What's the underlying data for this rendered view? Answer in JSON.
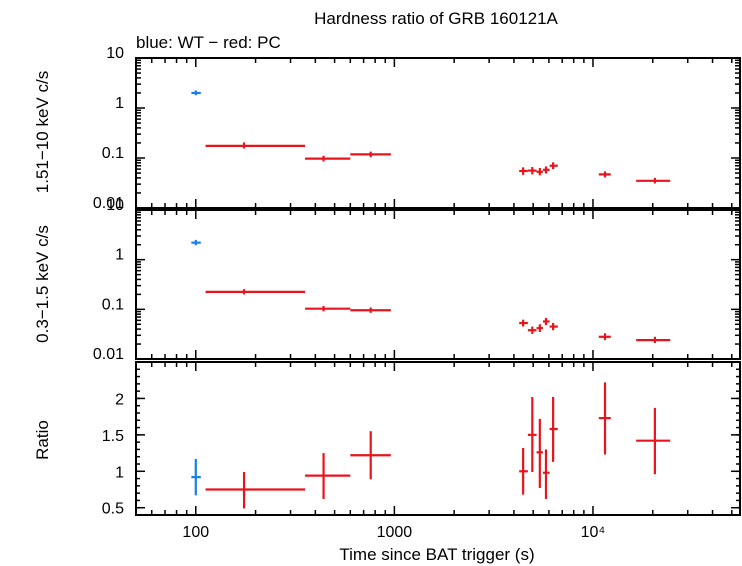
{
  "chart_data": {
    "type": "scatter",
    "title": "Hardness ratio of GRB 160121A",
    "subtitle": "blue: WT − red: PC",
    "xlabel": "Time since BAT trigger (s)",
    "xscale": "log",
    "xlim": [
      50,
      55000
    ],
    "x_tick_labels": [
      "100",
      "1000",
      "10⁴"
    ],
    "colors": {
      "WT": "#1a7fe6",
      "PC": "#e8141b"
    },
    "panels": [
      {
        "id": "hard",
        "ylabel": "1.51−10 keV c/s",
        "yscale": "log",
        "ylim": [
          0.01,
          10
        ],
        "y_tick_labels": [
          "0.01",
          "0.1",
          "1",
          "10"
        ],
        "series": [
          {
            "name": "WT",
            "color": "#1a7fe6",
            "points": [
              {
                "x": 100,
                "xlo": 95,
                "xhi": 106,
                "y": 2.0,
                "ylo": 1.8,
                "yhi": 2.25
              }
            ]
          },
          {
            "name": "PC",
            "color": "#e8141b",
            "points": [
              {
                "x": 175,
                "xlo": 112,
                "xhi": 355,
                "y": 0.175,
                "ylo": 0.155,
                "yhi": 0.205
              },
              {
                "x": 440,
                "xlo": 355,
                "xhi": 600,
                "y": 0.097,
                "ylo": 0.085,
                "yhi": 0.111
              },
              {
                "x": 760,
                "xlo": 600,
                "xhi": 960,
                "y": 0.118,
                "ylo": 0.104,
                "yhi": 0.134
              },
              {
                "x": 4450,
                "xlo": 4250,
                "xhi": 4700,
                "y": 0.055,
                "ylo": 0.046,
                "yhi": 0.065
              },
              {
                "x": 4950,
                "xlo": 4700,
                "xhi": 5200,
                "y": 0.056,
                "ylo": 0.047,
                "yhi": 0.066
              },
              {
                "x": 5400,
                "xlo": 5200,
                "xhi": 5600,
                "y": 0.053,
                "ylo": 0.045,
                "yhi": 0.063
              },
              {
                "x": 5800,
                "xlo": 5600,
                "xhi": 6050,
                "y": 0.058,
                "ylo": 0.049,
                "yhi": 0.068
              },
              {
                "x": 6300,
                "xlo": 6050,
                "xhi": 6650,
                "y": 0.07,
                "ylo": 0.06,
                "yhi": 0.082
              },
              {
                "x": 11500,
                "xlo": 10700,
                "xhi": 12300,
                "y": 0.047,
                "ylo": 0.041,
                "yhi": 0.054
              },
              {
                "x": 20500,
                "xlo": 16500,
                "xhi": 24500,
                "y": 0.035,
                "ylo": 0.031,
                "yhi": 0.04
              }
            ]
          }
        ]
      },
      {
        "id": "soft",
        "ylabel": "0.3−1.5 keV c/s",
        "yscale": "log",
        "ylim": [
          0.01,
          10
        ],
        "y_tick_labels": [
          "0.01",
          "0.1",
          "1",
          "10"
        ],
        "series": [
          {
            "name": "WT",
            "color": "#1a7fe6",
            "points": [
              {
                "x": 100,
                "xlo": 95,
                "xhi": 106,
                "y": 2.2,
                "ylo": 1.95,
                "yhi": 2.5
              }
            ]
          },
          {
            "name": "PC",
            "color": "#e8141b",
            "points": [
              {
                "x": 175,
                "xlo": 112,
                "xhi": 355,
                "y": 0.225,
                "ylo": 0.2,
                "yhi": 0.255
              },
              {
                "x": 440,
                "xlo": 355,
                "xhi": 600,
                "y": 0.103,
                "ylo": 0.091,
                "yhi": 0.117
              },
              {
                "x": 760,
                "xlo": 600,
                "xhi": 960,
                "y": 0.096,
                "ylo": 0.085,
                "yhi": 0.109
              },
              {
                "x": 4450,
                "xlo": 4250,
                "xhi": 4700,
                "y": 0.053,
                "ylo": 0.045,
                "yhi": 0.062
              },
              {
                "x": 4950,
                "xlo": 4700,
                "xhi": 5200,
                "y": 0.038,
                "ylo": 0.032,
                "yhi": 0.045
              },
              {
                "x": 5400,
                "xlo": 5200,
                "xhi": 5600,
                "y": 0.042,
                "ylo": 0.035,
                "yhi": 0.05
              },
              {
                "x": 5800,
                "xlo": 5600,
                "xhi": 6050,
                "y": 0.057,
                "ylo": 0.048,
                "yhi": 0.067
              },
              {
                "x": 6300,
                "xlo": 6050,
                "xhi": 6650,
                "y": 0.045,
                "ylo": 0.038,
                "yhi": 0.053
              },
              {
                "x": 11500,
                "xlo": 10700,
                "xhi": 12300,
                "y": 0.028,
                "ylo": 0.024,
                "yhi": 0.033
              },
              {
                "x": 20500,
                "xlo": 16500,
                "xhi": 24500,
                "y": 0.024,
                "ylo": 0.021,
                "yhi": 0.028
              }
            ]
          }
        ]
      },
      {
        "id": "ratio",
        "ylabel": "Ratio",
        "yscale": "linear",
        "ylim": [
          0.4,
          2.5
        ],
        "y_ticks": [
          0.5,
          1,
          1.5,
          2
        ],
        "y_tick_labels": [
          "0.5",
          "1",
          "1.5",
          "2"
        ],
        "series": [
          {
            "name": "WT",
            "color": "#1a7fe6",
            "points": [
              {
                "x": 100,
                "xlo": 95,
                "xhi": 106,
                "y": 0.92,
                "ylo": 0.67,
                "yhi": 1.17
              }
            ]
          },
          {
            "name": "PC",
            "color": "#e8141b",
            "points": [
              {
                "x": 175,
                "xlo": 112,
                "xhi": 355,
                "y": 0.75,
                "ylo": 0.49,
                "yhi": 0.99
              },
              {
                "x": 440,
                "xlo": 355,
                "xhi": 600,
                "y": 0.94,
                "ylo": 0.62,
                "yhi": 1.25
              },
              {
                "x": 760,
                "xlo": 600,
                "xhi": 960,
                "y": 1.22,
                "ylo": 0.89,
                "yhi": 1.55
              },
              {
                "x": 4450,
                "xlo": 4250,
                "xhi": 4700,
                "y": 1.0,
                "ylo": 0.68,
                "yhi": 1.32
              },
              {
                "x": 4950,
                "xlo": 4700,
                "xhi": 5200,
                "y": 1.5,
                "ylo": 0.99,
                "yhi": 2.02
              },
              {
                "x": 5400,
                "xlo": 5200,
                "xhi": 5600,
                "y": 1.26,
                "ylo": 0.77,
                "yhi": 1.72
              },
              {
                "x": 5800,
                "xlo": 5600,
                "xhi": 6050,
                "y": 0.98,
                "ylo": 0.62,
                "yhi": 1.3
              },
              {
                "x": 6300,
                "xlo": 6050,
                "xhi": 6650,
                "y": 1.58,
                "ylo": 1.13,
                "yhi": 2.02
              },
              {
                "x": 11500,
                "xlo": 10700,
                "xhi": 12300,
                "y": 1.73,
                "ylo": 1.23,
                "yhi": 2.22
              },
              {
                "x": 20500,
                "xlo": 16500,
                "xhi": 24500,
                "y": 1.42,
                "ylo": 0.96,
                "yhi": 1.87
              }
            ]
          }
        ]
      }
    ]
  }
}
